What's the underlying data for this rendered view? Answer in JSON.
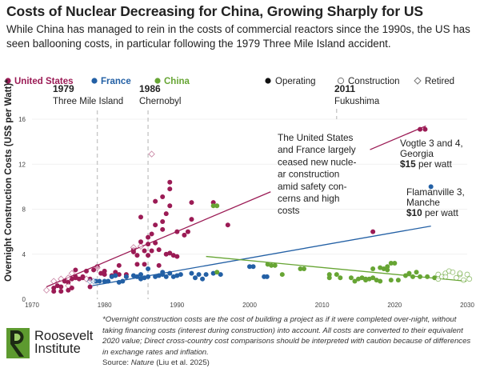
{
  "title": "Costs of Nuclear Decreasing for China, Growing Sharply for US",
  "subtitle": "While China has managed to rein in the costs of commercial reactors since the 1990s, the US has seen ballooning costs, in particular following the 1979 Three Mile Island accident.",
  "chart_data": {
    "type": "scatter",
    "title": "Costs of Nuclear Decreasing for China, Growing Sharply for US",
    "xlabel": "",
    "ylabel": "Overnight Construction Costs (US$ per Watt)*",
    "xlim": [
      1970,
      2030
    ],
    "ylim": [
      0,
      16
    ],
    "x_ticks": [
      "1970",
      "1980",
      "1990",
      "2000",
      "2010",
      "2020",
      "2030"
    ],
    "y_ticks": [
      "0",
      "4",
      "8",
      "12",
      "16"
    ],
    "grid": "horizontal, faint",
    "legend": {
      "placement": "top",
      "countries": [
        {
          "name": "United States",
          "color": "#9b1b55"
        },
        {
          "name": "France",
          "color": "#2360a5"
        },
        {
          "name": "China",
          "color": "#67a534"
        }
      ],
      "statuses": [
        {
          "name": "Operating",
          "marker": "filled-circle"
        },
        {
          "name": "Construction",
          "marker": "open-circle"
        },
        {
          "name": "Retired",
          "marker": "open-diamond"
        }
      ]
    },
    "events": [
      {
        "year": "1979",
        "name": "Three Mile Island",
        "x": 1979
      },
      {
        "year": "1986",
        "name": "Chernobyl",
        "x": 1986
      },
      {
        "year": "2011",
        "name": "Fukushima",
        "x": 2011
      }
    ],
    "series": [
      {
        "name": "United States",
        "status": "Operating",
        "color": "#9b1b55",
        "points": [
          [
            1973,
            0.7
          ],
          [
            1973,
            1.0
          ],
          [
            1973.5,
            1.2
          ],
          [
            1974,
            0.7
          ],
          [
            1974,
            1.1
          ],
          [
            1974.5,
            1.6
          ],
          [
            1975,
            0.8
          ],
          [
            1975,
            1.5
          ],
          [
            1975.5,
            1.0
          ],
          [
            1975.5,
            1.8
          ],
          [
            1976,
            1.9
          ],
          [
            1976,
            2.0
          ],
          [
            1976.5,
            1.8
          ],
          [
            1977,
            2.0
          ],
          [
            1977,
            1.9
          ],
          [
            1977.5,
            2.5
          ],
          [
            1976,
            2.6
          ],
          [
            1978,
            1.8
          ],
          [
            1978,
            1.1
          ],
          [
            1978.5,
            2.6
          ],
          [
            1979,
            2.9
          ],
          [
            1979.5,
            2.3
          ],
          [
            1980,
            2.2
          ],
          [
            1980,
            2.5
          ],
          [
            1981,
            2.1
          ],
          [
            1981.5,
            2.4
          ],
          [
            1982,
            3.0
          ],
          [
            1982,
            2.2
          ],
          [
            1983,
            2.0
          ],
          [
            1983,
            2.2
          ],
          [
            1984,
            4.4
          ],
          [
            1984,
            4.2
          ],
          [
            1984.5,
            3.9
          ],
          [
            1984.5,
            3.1
          ],
          [
            1985,
            7.3
          ],
          [
            1985,
            5.1
          ],
          [
            1985.5,
            3.1
          ],
          [
            1985.5,
            4.3
          ],
          [
            1986,
            4.9
          ],
          [
            1986,
            5.5
          ],
          [
            1986,
            3.9
          ],
          [
            1986.5,
            5.8
          ],
          [
            1986.5,
            4.3
          ],
          [
            1987,
            5.0
          ],
          [
            1987,
            6.6
          ],
          [
            1987,
            8.7
          ],
          [
            1987.5,
            3.0
          ],
          [
            1987.5,
            4.4
          ],
          [
            1988,
            9.1
          ],
          [
            1988,
            6.2
          ],
          [
            1988,
            6.9
          ],
          [
            1988.5,
            4.0
          ],
          [
            1988.5,
            7.6
          ],
          [
            1989,
            8.3
          ],
          [
            1989,
            9.8
          ],
          [
            1989,
            10.4
          ],
          [
            1989,
            4.1
          ],
          [
            1989.5,
            3.9
          ],
          [
            1990,
            6.0
          ],
          [
            1990,
            3.8
          ],
          [
            1991,
            5.7
          ],
          [
            1991.5,
            6.0
          ],
          [
            1992,
            8.6
          ],
          [
            1992,
            7.1
          ],
          [
            1995,
            8.6
          ],
          [
            1997,
            6.6
          ],
          [
            2017,
            6.0
          ],
          [
            2023.5,
            15.1
          ],
          [
            2024.2,
            15.1
          ]
        ]
      },
      {
        "name": "United States",
        "status": "Retired",
        "color": "#9b1b55",
        "points": [
          [
            1972,
            0.8
          ],
          [
            1973,
            1.6
          ],
          [
            1974,
            1.8
          ],
          [
            1975,
            1.2
          ],
          [
            1975,
            1.9
          ],
          [
            1975.5,
            2.3
          ],
          [
            1977.5,
            1.8
          ],
          [
            1979,
            2.8
          ],
          [
            1984,
            4.6
          ],
          [
            1985,
            4.7
          ],
          [
            1986.5,
            12.9
          ]
        ]
      },
      {
        "name": "France",
        "status": "Operating",
        "color": "#2360a5",
        "points": [
          [
            1978.8,
            1.6
          ],
          [
            1979.3,
            1.6
          ],
          [
            1980,
            1.6
          ],
          [
            1980.5,
            1.6
          ],
          [
            1981,
            2.0
          ],
          [
            1981.5,
            2.1
          ],
          [
            1982,
            1.5
          ],
          [
            1982.5,
            1.6
          ],
          [
            1983,
            2.0
          ],
          [
            1984,
            2.1
          ],
          [
            1984.5,
            2.0
          ],
          [
            1985,
            1.8
          ],
          [
            1985,
            2.2
          ],
          [
            1985.5,
            1.9
          ],
          [
            1986,
            2.7
          ],
          [
            1986,
            2.0
          ],
          [
            1987,
            2.0
          ],
          [
            1987.5,
            2.1
          ],
          [
            1988,
            2.2
          ],
          [
            1988,
            2.4
          ],
          [
            1988.5,
            2.0
          ],
          [
            1989,
            2.3
          ],
          [
            1989.5,
            2.0
          ],
          [
            1990,
            2.1
          ],
          [
            1990.5,
            2.2
          ],
          [
            1992,
            2.3
          ],
          [
            1992.5,
            1.9
          ],
          [
            1993,
            2.2
          ],
          [
            1993.5,
            1.8
          ],
          [
            1994,
            2.2
          ],
          [
            1995,
            2.3
          ],
          [
            1996,
            2.2
          ],
          [
            2000,
            2.9
          ],
          [
            2000.5,
            2.9
          ],
          [
            2002,
            2.0
          ],
          [
            2002.4,
            2.0
          ],
          [
            2025,
            10.0
          ]
        ]
      },
      {
        "name": "France",
        "status": "Retired",
        "color": "#2360a5",
        "points": [
          [
            1978,
            1.6
          ],
          [
            1978.5,
            1.6
          ]
        ]
      },
      {
        "name": "China",
        "status": "Operating",
        "color": "#67a534",
        "points": [
          [
            1995,
            8.3
          ],
          [
            1995.5,
            8.3
          ],
          [
            1995.5,
            2.4
          ],
          [
            2002.5,
            3.1
          ],
          [
            2003,
            3.0
          ],
          [
            2003.5,
            3.0
          ],
          [
            2004.5,
            2.2
          ],
          [
            2007,
            2.7
          ],
          [
            2007.5,
            2.7
          ],
          [
            2011,
            2.2
          ],
          [
            2011,
            1.9
          ],
          [
            2012,
            2.2
          ],
          [
            2012.5,
            1.9
          ],
          [
            2014,
            1.9
          ],
          [
            2014.5,
            1.6
          ],
          [
            2015,
            1.8
          ],
          [
            2015.5,
            1.9
          ],
          [
            2016,
            1.8
          ],
          [
            2016,
            1.7
          ],
          [
            2016.5,
            1.8
          ],
          [
            2017,
            1.9
          ],
          [
            2017,
            2.7
          ],
          [
            2017.5,
            1.7
          ],
          [
            2018,
            1.6
          ],
          [
            2018,
            2.8
          ],
          [
            2018.5,
            2.7
          ],
          [
            2019,
            2.9
          ],
          [
            2019,
            2.6
          ],
          [
            2019.5,
            1.7
          ],
          [
            2019.5,
            3.2
          ],
          [
            2020,
            3.2
          ],
          [
            2020.5,
            1.7
          ],
          [
            2021.5,
            2.1
          ],
          [
            2022,
            2.3
          ],
          [
            2022.5,
            2.0
          ],
          [
            2023,
            2.4
          ],
          [
            2023.5,
            2.0
          ],
          [
            2024.5,
            2.0
          ],
          [
            2025.5,
            1.9
          ]
        ]
      },
      {
        "name": "China",
        "status": "Construction",
        "color": "#67a534",
        "points": [
          [
            2026,
            2.2
          ],
          [
            2026,
            1.8
          ],
          [
            2026.5,
            2.0
          ],
          [
            2027,
            2.3
          ],
          [
            2027,
            2.0
          ],
          [
            2027.5,
            2.5
          ],
          [
            2028,
            2.4
          ],
          [
            2028.5,
            1.9
          ],
          [
            2029,
            2.2
          ],
          [
            2029,
            2.3
          ],
          [
            2029.5,
            1.7
          ],
          [
            2030,
            2.2
          ],
          [
            2030.3,
            1.8
          ]
        ]
      }
    ],
    "trendlines": [
      {
        "name": "United States",
        "color": "#9b1b55",
        "from": [
          1972,
          1.1
        ],
        "to": [
          2024.3,
          15.4
        ]
      },
      {
        "name": "France",
        "color": "#2360a5",
        "from": [
          1978.3,
          1.2
        ],
        "to": [
          2025,
          6.5
        ]
      },
      {
        "name": "China",
        "color": "#67a534",
        "from": [
          1994,
          3.8
        ],
        "to": [
          2029.9,
          1.6
        ]
      }
    ],
    "annotations": {
      "main": [
        "The United States",
        "and France largely",
        "ceased new nucle-",
        "ar construction",
        "amid safety con-",
        "cerns and high",
        "costs"
      ],
      "vogtle": {
        "name": [
          "Vogtle 3 and 4,",
          "Georgia"
        ],
        "value": "$15",
        "unit": " per watt"
      },
      "flamanville": {
        "name": [
          "Flamanville 3,",
          "Manche"
        ],
        "value": "$10",
        "unit": " per watt"
      }
    }
  },
  "footnote": "*Overnight construction costs are the cost of building a project as if it were completed over-night, without taking financing costs (interest during construction) into account. All costs are converted to their equivalent 2020 value; Direct cross-country cost comparisons should be interpreted with caution because of differences in exchange rates and inflation.",
  "source_prefix": "Source: ",
  "source_name": "Nature",
  "source_suffix": " (Liu et al. 2025)",
  "logo": {
    "line1": "Roosevelt",
    "line2": "Institute",
    "color": "#5d9a2f"
  }
}
